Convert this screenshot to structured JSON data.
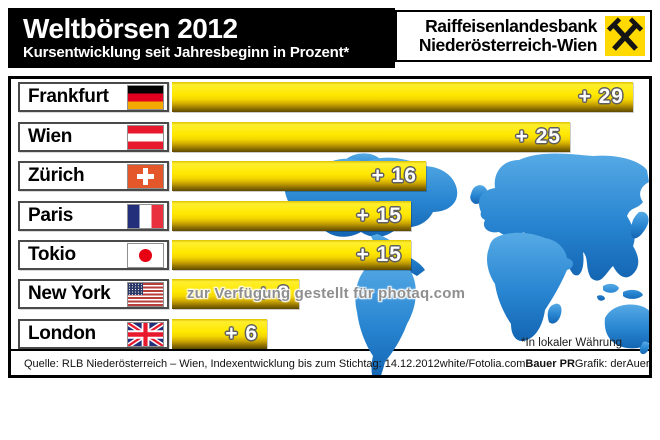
{
  "header": {
    "title": "Weltbörsen 2012",
    "subtitle": "Kursentwicklung seit Jahresbeginn in Prozent*",
    "brand_line1": "Raiffeisenlandesbank",
    "brand_line2": "Niederösterreich-Wien",
    "logo_icon": "raiffeisen-giebelkreuz"
  },
  "chart_data": {
    "type": "bar",
    "orientation": "horizontal",
    "title": "Weltbörsen 2012",
    "subtitle": "Kursentwicklung seit Jahresbeginn in Prozent*",
    "unit": "Prozent",
    "xlim": [
      0,
      30
    ],
    "grid": false,
    "legend": false,
    "categories": [
      "Frankfurt",
      "Wien",
      "Zürich",
      "Paris",
      "Tokio",
      "New York",
      "London"
    ],
    "values": [
      29,
      25,
      16,
      15,
      15,
      8,
      6
    ],
    "value_labels": [
      "+ 29",
      "+ 25",
      "+ 16",
      "+ 15",
      "+ 15",
      "+ 8",
      "+ 6"
    ],
    "flags": [
      "germany",
      "austria",
      "switzerland",
      "france",
      "japan",
      "usa",
      "uk"
    ]
  },
  "footnote": "*In lokaler Währung",
  "watermark": "zur Verfügung gestellt für photaq.com",
  "footer": {
    "source": "Quelle: RLB Niederösterreich – Wien, Indexentwicklung bis zum Stichtag: 14.12.2012",
    "credit_photo": "white/Fotolia.com",
    "credit_pr": "Bauer PR",
    "credit_grafik": "Grafik: derAuer.at"
  },
  "colors": {
    "header_bg": "#000000",
    "logo_yellow": "#ffd900",
    "bar_yellow_top": "#ffe800",
    "bar_shadow_bottom": "#5d4800",
    "map_blue": "#2b87d3",
    "value_text": "#ffffff"
  }
}
